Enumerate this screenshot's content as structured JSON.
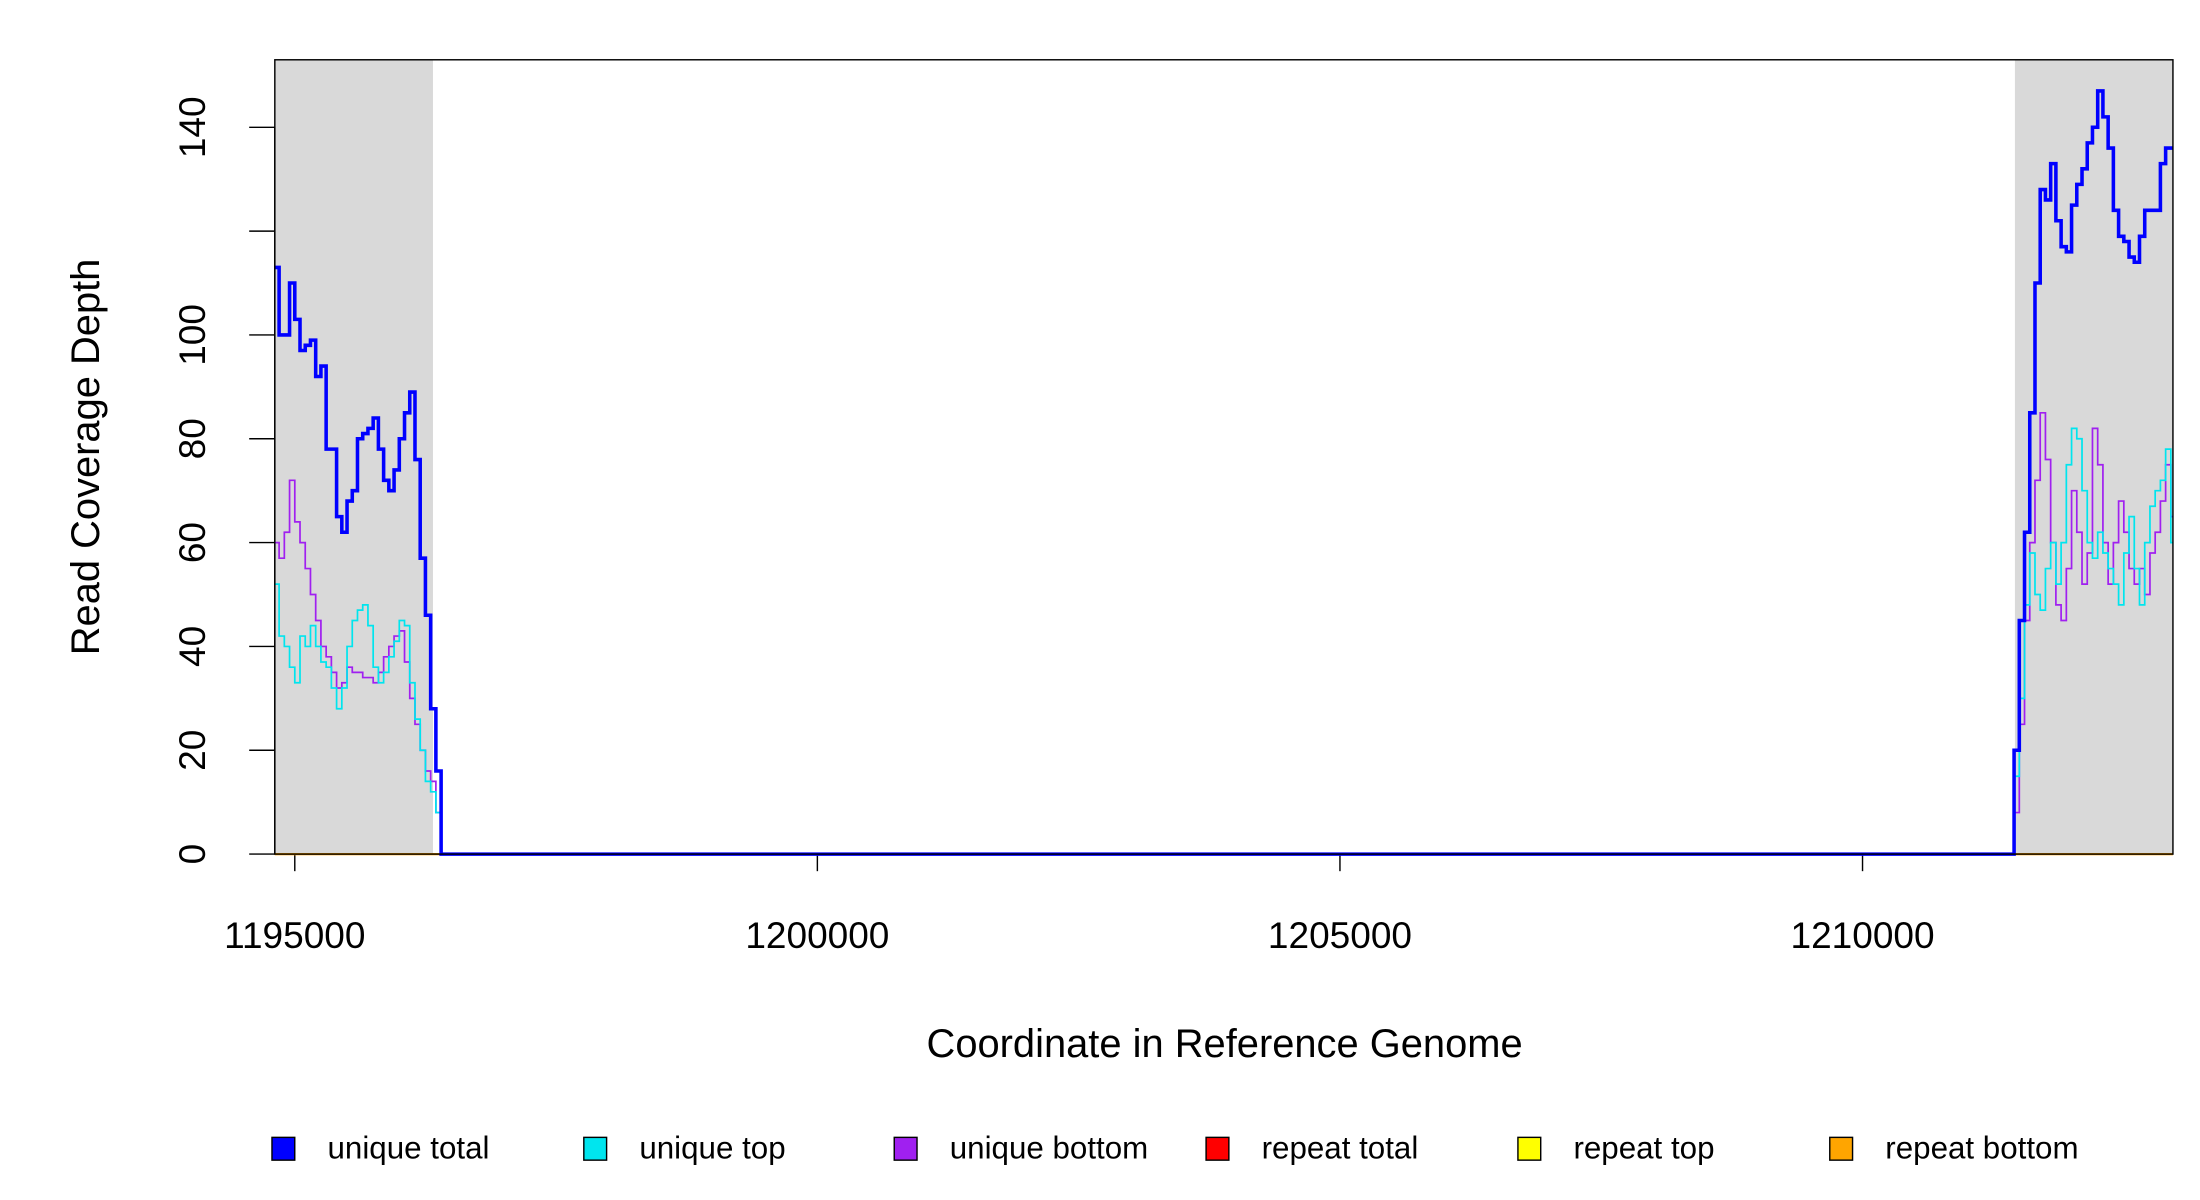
{
  "chart_data": {
    "type": "step",
    "x_label": "Coordinate in Reference Genome",
    "y_label": "Read Coverage Depth",
    "xlim": [
      1194809,
      1212970
    ],
    "ylim": [
      0,
      153
    ],
    "xticks": [
      1195000,
      1200000,
      1205000,
      1210000
    ],
    "yticks": [
      0,
      20,
      40,
      60,
      80,
      100,
      {
        "value": 120,
        "label": null
      },
      140
    ],
    "shaded_regions": [
      [
        1194809,
        1196322
      ],
      [
        1211458,
        1212970
      ]
    ],
    "shade_color": "#d9d9d9",
    "x": [
      1194800,
      1194850,
      1194900,
      1194950,
      1195000,
      1195050,
      1195100,
      1195150,
      1195200,
      1195250,
      1195300,
      1195350,
      1195400,
      1195450,
      1195500,
      1195550,
      1195600,
      1195650,
      1195700,
      1195750,
      1195800,
      1195850,
      1195900,
      1195950,
      1196000,
      1196050,
      1196100,
      1196150,
      1196200,
      1196250,
      1196300,
      1196350,
      1196400,
      1211400,
      1211450,
      1211500,
      1211550,
      1211600,
      1211650,
      1211700,
      1211750,
      1211800,
      1211850,
      1211900,
      1211950,
      1212000,
      1212050,
      1212100,
      1212150,
      1212200,
      1212250,
      1212300,
      1212350,
      1212400,
      1212450,
      1212500,
      1212550,
      1212600,
      1212650,
      1212700,
      1212750,
      1212800,
      1212850,
      1212900,
      1212950
    ],
    "series": [
      {
        "name": "unique total",
        "color": "#0000ff",
        "width": 2.5,
        "values": [
          113,
          100,
          100,
          110,
          103,
          97,
          98,
          99,
          92,
          94,
          78,
          78,
          65,
          62,
          68,
          70,
          80,
          81,
          82,
          84,
          78,
          72,
          70,
          74,
          80,
          85,
          89,
          76,
          57,
          46,
          28,
          16,
          0,
          0,
          20,
          45,
          62,
          85,
          110,
          128,
          126,
          133,
          122,
          117,
          116,
          125,
          129,
          132,
          137,
          140,
          147,
          142,
          136,
          124,
          119,
          118,
          115,
          114,
          119,
          124,
          124,
          124,
          133,
          136,
          136
        ]
      },
      {
        "name": "unique top",
        "color": "#00e5ee",
        "width": 1.2,
        "values": [
          52,
          42,
          40,
          36,
          33,
          42,
          40,
          44,
          40,
          37,
          36,
          32,
          28,
          32,
          40,
          45,
          47,
          48,
          44,
          36,
          33,
          35,
          38,
          41,
          45,
          44,
          33,
          26,
          20,
          14,
          12,
          8,
          0,
          0,
          15,
          30,
          48,
          58,
          50,
          47,
          55,
          60,
          52,
          60,
          75,
          82,
          80,
          70,
          60,
          57,
          62,
          58,
          55,
          52,
          48,
          58,
          65,
          55,
          48,
          60,
          67,
          70,
          72,
          78,
          60
        ]
      },
      {
        "name": "unique bottom",
        "color": "#a020f0",
        "width": 1.2,
        "values": [
          60,
          57,
          62,
          72,
          64,
          60,
          55,
          50,
          45,
          40,
          38,
          35,
          32,
          33,
          36,
          35,
          35,
          34,
          34,
          33,
          35,
          38,
          40,
          42,
          43,
          37,
          30,
          25,
          20,
          16,
          14,
          8,
          0,
          0,
          8,
          25,
          45,
          60,
          72,
          85,
          76,
          60,
          48,
          45,
          55,
          70,
          62,
          52,
          58,
          82,
          75,
          60,
          52,
          60,
          68,
          62,
          55,
          52,
          55,
          50,
          58,
          62,
          68,
          75,
          65
        ]
      },
      {
        "name": "repeat total",
        "color": "#ff0000",
        "width": 1.5,
        "values": [
          0,
          0,
          0,
          0,
          0,
          0,
          0,
          0,
          0,
          0,
          0,
          0,
          0,
          0,
          0,
          0,
          0,
          0,
          0,
          0,
          0,
          0,
          0,
          0,
          0,
          0,
          0,
          0,
          0,
          0,
          0,
          0,
          0,
          0,
          0,
          0,
          0,
          0,
          0,
          0,
          0,
          0,
          0,
          0,
          0,
          0,
          0,
          0,
          0,
          0,
          0,
          0,
          0,
          0,
          0,
          0,
          0,
          0,
          0,
          0,
          0,
          0,
          0,
          0,
          0
        ]
      },
      {
        "name": "repeat top",
        "color": "#ffff00",
        "width": 1.5,
        "values": [
          0,
          0,
          0,
          0,
          0,
          0,
          0,
          0,
          0,
          0,
          0,
          0,
          0,
          0,
          0,
          0,
          0,
          0,
          0,
          0,
          0,
          0,
          0,
          0,
          0,
          0,
          0,
          0,
          0,
          0,
          0,
          0,
          0,
          0,
          0,
          0,
          0,
          0,
          0,
          0,
          0,
          0,
          0,
          0,
          0,
          0,
          0,
          0,
          0,
          0,
          0,
          0,
          0,
          0,
          0,
          0,
          0,
          0,
          0,
          0,
          0,
          0,
          0,
          0,
          0
        ]
      },
      {
        "name": "repeat bottom",
        "color": "#ffa500",
        "width": 1.5,
        "values": [
          0,
          0,
          0,
          0,
          0,
          0,
          0,
          0,
          0,
          0,
          0,
          0,
          0,
          0,
          0,
          0,
          0,
          0,
          0,
          0,
          0,
          0,
          0,
          0,
          0,
          0,
          0,
          0,
          0,
          0,
          0,
          0,
          0,
          0,
          0,
          0,
          0,
          0,
          0,
          0,
          0,
          0,
          0,
          0,
          0,
          0,
          0,
          0,
          0,
          0,
          0,
          0,
          0,
          0,
          0,
          0,
          0,
          0,
          0,
          0,
          0,
          0,
          0,
          0,
          0
        ]
      }
    ]
  }
}
